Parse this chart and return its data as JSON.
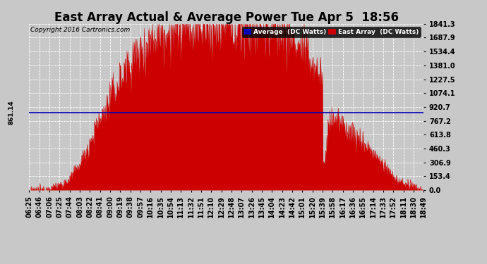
{
  "title": "East Array Actual & Average Power Tue Apr 5  18:56",
  "copyright": "Copyright 2016 Cartronics.com",
  "avg_value": 861.14,
  "ymax": 1841.3,
  "yticks": [
    0.0,
    153.4,
    306.9,
    460.3,
    613.8,
    767.2,
    920.7,
    1074.1,
    1227.5,
    1381.0,
    1534.4,
    1687.9,
    1841.3
  ],
  "xtick_labels": [
    "06:25",
    "06:46",
    "07:06",
    "07:25",
    "07:44",
    "08:03",
    "08:22",
    "08:41",
    "09:00",
    "09:19",
    "09:38",
    "09:57",
    "10:16",
    "10:35",
    "10:54",
    "11:13",
    "11:32",
    "11:51",
    "12:10",
    "12:29",
    "12:48",
    "13:07",
    "13:26",
    "13:45",
    "14:04",
    "14:23",
    "14:42",
    "15:01",
    "15:20",
    "15:39",
    "15:58",
    "16:17",
    "16:36",
    "16:55",
    "17:14",
    "17:33",
    "17:52",
    "18:11",
    "18:30",
    "18:49"
  ],
  "bg_color": "#c8c8c8",
  "plot_bg_color": "#c8c8c8",
  "grid_color": "white",
  "area_color": "#cc0000",
  "line_color": "#0000bb",
  "legend_avg_bg": "#0000bb",
  "legend_east_bg": "#cc0000",
  "title_fontsize": 12,
  "tick_fontsize": 7,
  "avg_label": "Average  (DC Watts)",
  "east_label": "East Array  (DC Watts)"
}
